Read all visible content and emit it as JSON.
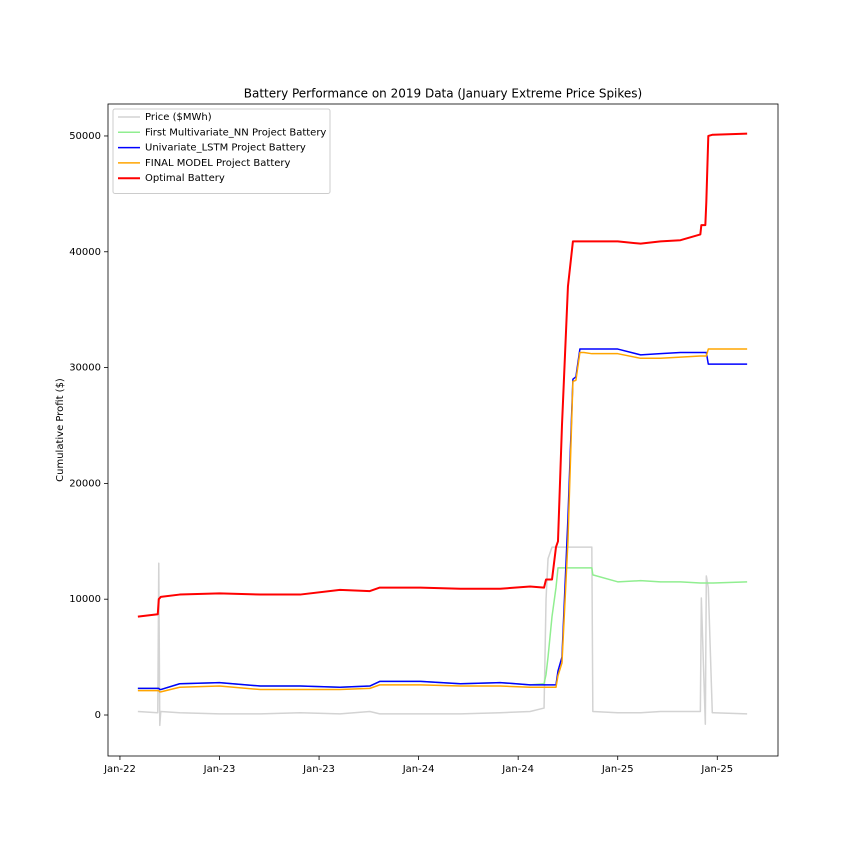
{
  "chart_data": {
    "type": "line",
    "title": "Battery Performance on 2019 Data (January Extreme Price Spikes)",
    "y_label": "Cumulative Profit ($)",
    "x": [
      0.18,
      0.38,
      0.39,
      0.4,
      0.41,
      0.6,
      1.0,
      1.41,
      1.81,
      2.21,
      2.51,
      2.61,
      3.02,
      3.42,
      3.82,
      4.12,
      4.26,
      4.28,
      4.3,
      4.34,
      4.38,
      4.4,
      4.44,
      4.5,
      4.55,
      4.58,
      4.62,
      4.66,
      4.74,
      4.75,
      5.0,
      5.23,
      5.43,
      5.63,
      5.83,
      5.84,
      5.88,
      5.89,
      5.91,
      5.95,
      5.96,
      6.3
    ],
    "series": [
      {
        "name": "Price ($MWh)",
        "color": "#d3d3d3",
        "linewidth": 1.5,
        "values": [
          300,
          200,
          13100,
          -900,
          300,
          200,
          100,
          100,
          200,
          100,
          300,
          100,
          100,
          100,
          200,
          300,
          600,
          10000,
          13500,
          14500,
          14500,
          14500,
          14500,
          14500,
          14500,
          14500,
          14500,
          14500,
          14500,
          300,
          200,
          200,
          300,
          300,
          300,
          10100,
          -800,
          12000,
          11000,
          200,
          200,
          100
        ]
      },
      {
        "name": "First Multivariate_NN Project Battery",
        "color": "#90ee90",
        "linewidth": 1.5,
        "values": [
          2300,
          2300,
          2300,
          2200,
          2200,
          2700,
          2800,
          2500,
          2500,
          2400,
          2500,
          2900,
          2900,
          2700,
          2800,
          2600,
          2700,
          3500,
          5000,
          8500,
          11000,
          12700,
          12700,
          12700,
          12700,
          12700,
          12700,
          12700,
          12700,
          12100,
          11500,
          11600,
          11500,
          11500,
          11400,
          11400,
          11400,
          11400,
          11400,
          11400,
          11400,
          11500
        ]
      },
      {
        "name": "Univariate_LSTM Project Battery",
        "color": "#0000ff",
        "linewidth": 1.5,
        "values": [
          2300,
          2300,
          2300,
          2200,
          2200,
          2700,
          2800,
          2500,
          2500,
          2400,
          2500,
          2900,
          2900,
          2700,
          2800,
          2600,
          2600,
          2600,
          2600,
          2600,
          2600,
          3800,
          5000,
          17000,
          29000,
          29200,
          31600,
          31600,
          31600,
          31600,
          31600,
          31100,
          31200,
          31300,
          31300,
          31300,
          31300,
          31300,
          30300,
          30300,
          30300,
          30300
        ]
      },
      {
        "name": "FINAL MODEL Project Battery",
        "color": "#ffa500",
        "linewidth": 1.5,
        "values": [
          2100,
          2100,
          2100,
          2000,
          2000,
          2400,
          2500,
          2200,
          2200,
          2200,
          2300,
          2600,
          2600,
          2500,
          2500,
          2400,
          2400,
          2400,
          2400,
          2400,
          2400,
          3400,
          4500,
          15000,
          28800,
          28900,
          31300,
          31300,
          31200,
          31200,
          31200,
          30800,
          30800,
          30900,
          31000,
          31000,
          31000,
          31000,
          31600,
          31600,
          31600,
          31600
        ]
      },
      {
        "name": "Optimal Battery",
        "color": "#ff0000",
        "linewidth": 2,
        "values": [
          8500,
          8700,
          10000,
          10100,
          10200,
          10400,
          10500,
          10400,
          10400,
          10800,
          10700,
          11000,
          11000,
          10900,
          10900,
          11100,
          11000,
          11700,
          11700,
          11700,
          14500,
          15000,
          25000,
          37000,
          40900,
          40900,
          40900,
          40900,
          40900,
          40900,
          40900,
          40700,
          40900,
          41000,
          41500,
          42300,
          42300,
          44300,
          50000,
          50100,
          50100,
          50200
        ]
      }
    ],
    "xlim": [
      -0.12,
      6.61
    ],
    "xticks": [
      {
        "value": 0,
        "label": "Jan-22"
      },
      {
        "value": 1,
        "label": "Jan-23"
      },
      {
        "value": 2,
        "label": "Jan-23"
      },
      {
        "value": 3,
        "label": "Jan-24"
      },
      {
        "value": 4,
        "label": "Jan-24"
      },
      {
        "value": 5,
        "label": "Jan-25"
      },
      {
        "value": 6,
        "label": "Jan-25"
      }
    ],
    "ylim": [
      -3540,
      52760
    ],
    "yticks": [
      0,
      10000,
      20000,
      30000,
      40000,
      50000
    ],
    "legend": "upper left",
    "grid": false
  }
}
